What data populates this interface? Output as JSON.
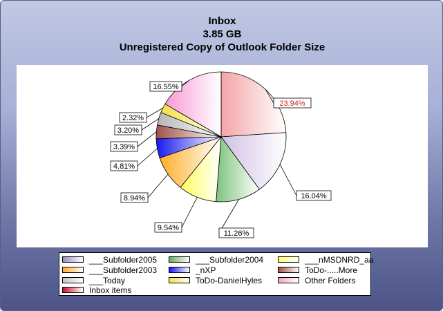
{
  "chart_data": {
    "type": "pie",
    "title_lines": [
      "Inbox",
      "3.85 GB",
      "Unregistered Copy of Outlook Folder Size"
    ],
    "slices": [
      {
        "label": "Other Folders",
        "value": 23.94,
        "text": "23.94%",
        "color": "#f4a4a8",
        "label_color": "#cc2020"
      },
      {
        "label": "___Subfolder2005",
        "value": 16.04,
        "text": "16.04%",
        "color": "#d0c0e4",
        "label_color": "#000000"
      },
      {
        "label": "___Subfolder2004",
        "value": 11.26,
        "text": "11.26%",
        "color": "#7cc37c",
        "label_color": "#000000"
      },
      {
        "label": "___nMSDNRD_aa",
        "value": 9.54,
        "text": "9.54%",
        "color": "#ffff60",
        "label_color": "#000000"
      },
      {
        "label": "___Subfolder2003",
        "value": 8.94,
        "text": "8.94%",
        "color": "#ffad2a",
        "label_color": "#000000"
      },
      {
        "label": "_nXP",
        "value": 4.81,
        "text": "4.81%",
        "color": "#1818ee",
        "label_color": "#000000"
      },
      {
        "label": "ToDo-.....More",
        "value": 3.39,
        "text": "3.39%",
        "color": "#a0524a",
        "label_color": "#000000"
      },
      {
        "label": "___Today",
        "value": 3.2,
        "text": "3.20%",
        "color": "#b6b6b6",
        "label_color": "#000000"
      },
      {
        "label": "ToDo-DanielHyles",
        "value": 2.32,
        "text": "2.32%",
        "color": "#f0e040",
        "label_color": "#000000"
      },
      {
        "label": "Inbox items",
        "value": 16.55,
        "text": "16.55%",
        "color": "#f79ad6",
        "label_color": "#000000"
      }
    ],
    "legend": {
      "items": [
        {
          "label": "___Subfolder2005",
          "color": "#9a8cc0"
        },
        {
          "label": "___Subfolder2004",
          "color": "#66aa66"
        },
        {
          "label": "___nMSDNRD_aa",
          "color": "#ffff70"
        },
        {
          "label": "___Subfolder2003",
          "color": "#ffad2a"
        },
        {
          "label": "_nXP",
          "color": "#1818ee"
        },
        {
          "label": "ToDo-.....More",
          "color": "#a0524a"
        },
        {
          "label": "___Today",
          "color": "#c4c4c4"
        },
        {
          "label": "ToDo-DanielHyles",
          "color": "#f0e040"
        },
        {
          "label": "Other Folders",
          "color": "#f4a4c8"
        },
        {
          "label": "Inbox items",
          "color": "#cc1030"
        }
      ]
    }
  }
}
